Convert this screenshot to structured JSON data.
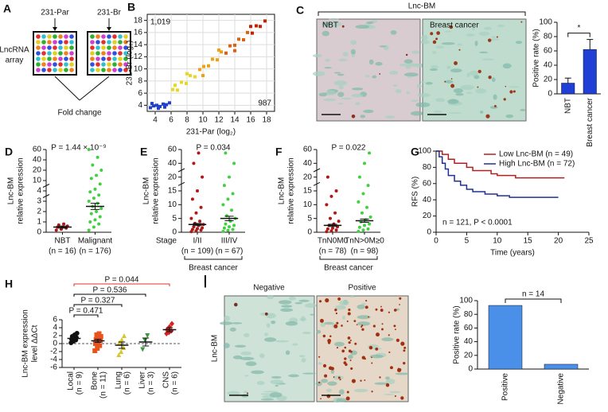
{
  "panel_A": {
    "letter": "A",
    "arrays": [
      "231-Par",
      "231-Br"
    ],
    "label": [
      "LncRNA",
      "array"
    ],
    "result": "Fold change"
  },
  "panel_C": {
    "title": "Lnc-BM",
    "images": [
      "NBT",
      "Breast cancer"
    ]
  },
  "panel_I": {
    "letter": "I",
    "images": [
      "Negative",
      "Positive"
    ],
    "ylabel": "Lnc-BM"
  },
  "chart_data": [
    {
      "panel": "B",
      "type": "scatter",
      "xlabel": "231-Par (log₂)",
      "ylabel": "231-Br (log₂)",
      "xlim": [
        3,
        19
      ],
      "ylim": [
        3,
        19
      ],
      "xticks": [
        4,
        6,
        8,
        10,
        12,
        14,
        16,
        18
      ],
      "yticks": [
        4,
        6,
        8,
        10,
        12,
        14,
        16,
        18
      ],
      "grid": true,
      "annotations": [
        "1,019",
        "987"
      ],
      "colors": [
        "#2040d0",
        "#e8d820",
        "#f0a010",
        "#e06010",
        "#c82000"
      ],
      "x": [
        3.4,
        3.8,
        4.2,
        4.6,
        5.0,
        5.4,
        5.8,
        3.6,
        4.4,
        5.2,
        6.2,
        6.8,
        7.3,
        7.9,
        8.4,
        9.0,
        9.6,
        10.1,
        10.7,
        11.2,
        11.8,
        12.3,
        12.9,
        13.4,
        14.0,
        14.5,
        15.1,
        15.6,
        16.2,
        16.7,
        17.2,
        17.8,
        8.0,
        10.0,
        12.0,
        14.0,
        6.5,
        16.0
      ],
      "y": [
        3.6,
        3.9,
        4.0,
        3.8,
        4.2,
        4.1,
        4.4,
        4.3,
        3.5,
        3.7,
        6.6,
        6.5,
        7.8,
        7.6,
        8.9,
        8.7,
        9.9,
        10.4,
        10.5,
        11.6,
        11.5,
        12.8,
        12.6,
        13.8,
        13.9,
        14.9,
        14.8,
        16.0,
        15.9,
        17.1,
        17.0,
        17.9,
        9.2,
        8.9,
        13.1,
        13.0,
        7.3,
        17.0
      ]
    },
    {
      "panel": "C",
      "type": "bar",
      "ylabel": "Positive rate (%)",
      "categories": [
        "NBT",
        "Breast cancer"
      ],
      "values": [
        15,
        62
      ],
      "errors": [
        7,
        14
      ],
      "color": "#1f3fd6",
      "ylim": [
        0,
        100
      ],
      "yticks": [
        0,
        20,
        40,
        60,
        80,
        100
      ],
      "annotation": "*"
    },
    {
      "panel": "D",
      "type": "dotplot",
      "ylabel": [
        "Lnc-BM",
        "relative expression"
      ],
      "annotation": "P = 1.44 × 10⁻⁹",
      "annotation_color": "#e03030",
      "categories": [
        "NBT",
        "Malignant"
      ],
      "n_labels": [
        "(n = 16)",
        "(n = 176)"
      ],
      "colors": [
        "#b01818",
        "#40d040"
      ],
      "points": [
        [
          0.2,
          0.3,
          0.4,
          0.5,
          0.5,
          0.6,
          0.7,
          0.8
        ],
        [
          0.2,
          0.5,
          0.8,
          1,
          1.2,
          1.5,
          1.8,
          2,
          2.3,
          2.5,
          2.8,
          3,
          3.3,
          3.6,
          3.9,
          5,
          8,
          12,
          15,
          20,
          30,
          45,
          60
        ]
      ],
      "mean": [
        0.5,
        2.5
      ],
      "sem": [
        0.1,
        0.3
      ],
      "ylim": [
        0,
        60
      ],
      "yticks": [
        0,
        1,
        2,
        3,
        4,
        10,
        20,
        40,
        60
      ],
      "broken_axis": true
    },
    {
      "panel": "E",
      "type": "dotplot",
      "ylabel": [
        "Lnc-BM",
        "relative expression"
      ],
      "annotation": "P = 0.034",
      "annotation_color": "#e03030",
      "xlabel": "Stage",
      "group_label": "Breast cancer",
      "categories": [
        "I/II",
        "III/IV"
      ],
      "n_labels": [
        "(n = 109)",
        "(n = 67)"
      ],
      "colors": [
        "#b01818",
        "#40d040"
      ],
      "points": [
        [
          0.2,
          0.5,
          0.8,
          1,
          1.3,
          1.6,
          2,
          2.4,
          2.8,
          3.2,
          4,
          5,
          7,
          9,
          12,
          15,
          20,
          40,
          55
        ],
        [
          0.3,
          0.7,
          1,
          1.5,
          2,
          2.5,
          3,
          4,
          5,
          6,
          8,
          10,
          12,
          14,
          17,
          20,
          40,
          55
        ]
      ],
      "mean": [
        2.8,
        5
      ],
      "sem": [
        0.4,
        0.8
      ],
      "ylim": [
        0,
        60
      ],
      "yticks": [
        0,
        5,
        10,
        15,
        20,
        40,
        60
      ],
      "broken_axis": true
    },
    {
      "panel": "F",
      "type": "dotplot",
      "ylabel": [
        "Lnc-BM",
        "relative expression"
      ],
      "annotation": "P = 0.022",
      "annotation_color": "#e03030",
      "group_label": "Breast cancer",
      "categories": [
        "TnN0M0",
        "TnN>0M≥0"
      ],
      "n_labels": [
        "(n = 78)",
        "(n = 98)"
      ],
      "colors": [
        "#b01818",
        "#40d040"
      ],
      "points": [
        [
          0.2,
          0.5,
          0.8,
          1.2,
          1.5,
          2,
          2.5,
          3,
          4,
          5,
          7,
          10,
          13,
          15,
          20
        ],
        [
          0.3,
          0.8,
          1.2,
          1.8,
          2.5,
          3,
          3.8,
          4.5,
          5.5,
          7,
          9,
          11,
          14,
          17,
          20,
          40,
          55
        ]
      ],
      "mean": [
        2.5,
        4.2
      ],
      "sem": [
        0.4,
        0.6
      ],
      "ylim": [
        0,
        60
      ],
      "yticks": [
        0,
        5,
        10,
        15,
        20,
        40,
        60
      ],
      "broken_axis": true
    },
    {
      "panel": "G",
      "type": "line",
      "xlabel": "Time (years)",
      "ylabel": "RFS (%)",
      "annotation": "n = 121, P < 0.0001",
      "annotation_color": "#e03030",
      "xlim": [
        0,
        25
      ],
      "ylim": [
        0,
        100
      ],
      "xticks": [
        0,
        5,
        10,
        15,
        20,
        25
      ],
      "yticks": [
        0,
        20,
        40,
        60,
        80,
        100
      ],
      "series": [
        {
          "name": "Low Lnc-BM (n = 49)",
          "color": "#b02020",
          "x": [
            0,
            1,
            1,
            2,
            2,
            3,
            3,
            5,
            5,
            6,
            6,
            9,
            9,
            10,
            10,
            13,
            13,
            21
          ],
          "values": [
            100,
            100,
            96,
            96,
            90,
            90,
            85,
            85,
            80,
            80,
            76,
            76,
            72,
            72,
            70,
            70,
            67,
            67
          ]
        },
        {
          "name": "High Lnc-BM (n = 72)",
          "color": "#203090",
          "x": [
            0,
            0.5,
            0.5,
            1,
            1,
            1.5,
            1.5,
            2,
            2,
            3,
            3,
            4,
            4,
            5,
            5,
            6,
            6,
            8,
            8,
            10,
            10,
            12,
            12,
            20
          ],
          "values": [
            100,
            100,
            93,
            93,
            85,
            85,
            78,
            78,
            70,
            70,
            63,
            63,
            58,
            58,
            53,
            53,
            50,
            50,
            47,
            47,
            45,
            45,
            43,
            43
          ]
        }
      ]
    },
    {
      "panel": "H",
      "type": "dotplot",
      "ylabel": [
        "Lnc-BM expression",
        "level ΔΔCt"
      ],
      "rotate_labels": true,
      "zero_line": true,
      "categories": [
        "Local",
        "Bone",
        "Lung",
        "Liver",
        "CNS"
      ],
      "n_labels": [
        "(n = 9)",
        "(n = 11)",
        "(n = 6)",
        "(n = 3)",
        "(n = 6)"
      ],
      "colors": [
        "#111111",
        "#e8541e",
        "#d8c830",
        "#3a9a3a",
        "#d42020"
      ],
      "shapes": [
        "circle",
        "square",
        "triangle",
        "triangle-down",
        "diamond"
      ],
      "points": [
        [
          0.2,
          0.6,
          0.9,
          1.1,
          1.3,
          1.5,
          1.8,
          2.2,
          2.6
        ],
        [
          -1.8,
          -1.2,
          -0.5,
          0,
          0.5,
          0.8,
          1,
          1.3,
          1.8,
          2.2,
          2.5
        ],
        [
          -2.8,
          -2,
          -1,
          0.3,
          1,
          2
        ],
        [
          -1.5,
          0.8,
          2
        ],
        [
          2.5,
          2.8,
          3.2,
          3.5,
          4.2,
          5
        ]
      ],
      "mean": [
        1.3,
        0.7,
        -0.4,
        0.4,
        3.5
      ],
      "sem": [
        0.25,
        0.4,
        0.8,
        1,
        0.5
      ],
      "ylim": [
        -6,
        6
      ],
      "yticks": [
        -6,
        -4,
        -2,
        0,
        2,
        4,
        6
      ],
      "comparisons": [
        {
          "label": "P = 0.471",
          "color": "#000000"
        },
        {
          "label": "P = 0.327",
          "color": "#000000"
        },
        {
          "label": "P = 0.536",
          "color": "#000000"
        },
        {
          "label": "P = 0.044",
          "color": "#e03030"
        }
      ]
    },
    {
      "panel": "I",
      "type": "bar",
      "ylabel": "Positive rate (%)",
      "categories": [
        "Positive",
        "Negative"
      ],
      "values": [
        93,
        7
      ],
      "color": "#4a90e8",
      "ylim": [
        0,
        100
      ],
      "yticks": [
        0,
        20,
        40,
        60,
        80,
        100
      ],
      "annotation": "n = 14"
    }
  ]
}
